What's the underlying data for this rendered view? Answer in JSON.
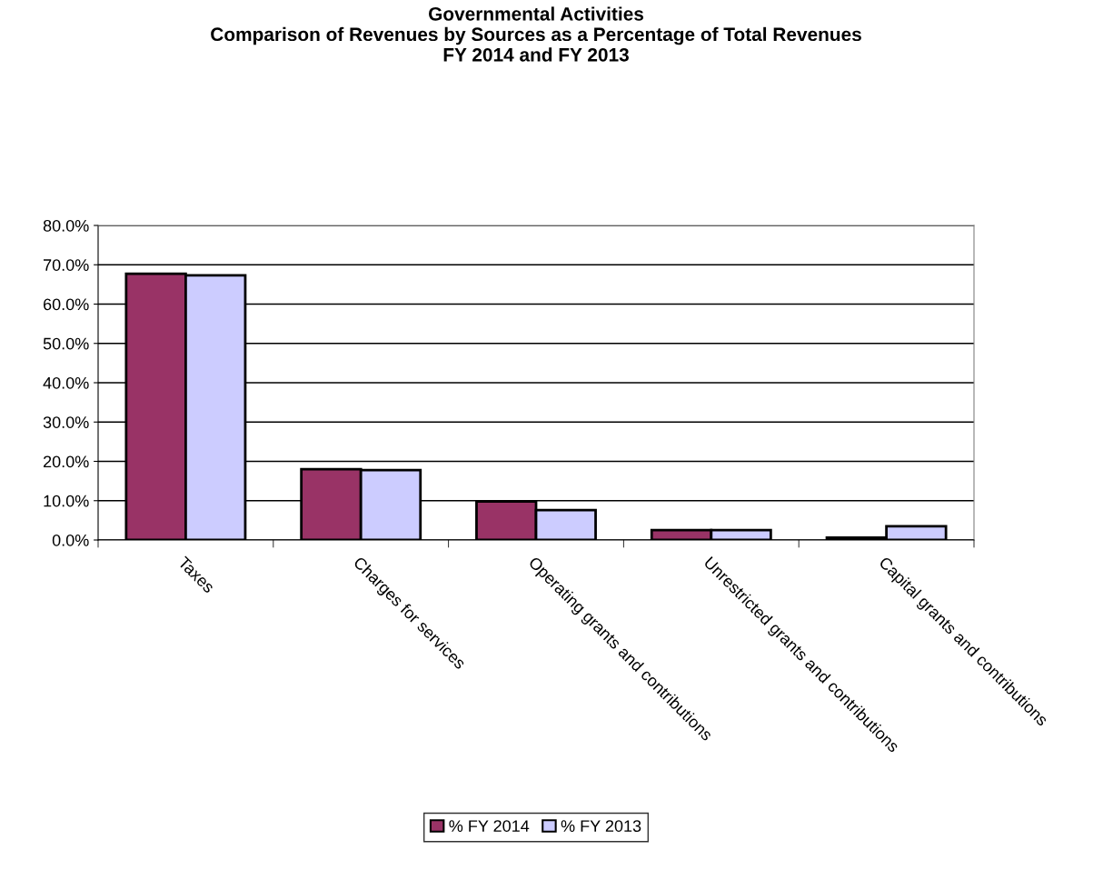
{
  "chart_data": {
    "type": "bar",
    "title": "Governmental Activities\nComparison of Revenues by Sources as a Percentage of Total Revenues\nFY 2014 and FY 2013",
    "categories": [
      "Taxes",
      "Charges for services",
      "Operating grants and contributions",
      "Unrestricted grants and contributions",
      "Capital grants and contributions"
    ],
    "series": [
      {
        "name": "% FY 2014",
        "color": "#993366",
        "values": [
          67.7,
          18.0,
          9.8,
          2.5,
          0.6
        ]
      },
      {
        "name": "% FY 2013",
        "color": "#ccccff",
        "values": [
          67.3,
          17.8,
          7.6,
          2.5,
          3.5
        ]
      }
    ],
    "ylim": [
      0,
      80
    ],
    "yticks": [
      {
        "value": 0,
        "label": "0.0%"
      },
      {
        "value": 10,
        "label": "10.0%"
      },
      {
        "value": 20,
        "label": "20.0%"
      },
      {
        "value": 30,
        "label": "30.0%"
      },
      {
        "value": 40,
        "label": "40.0%"
      },
      {
        "value": 50,
        "label": "50.0%"
      },
      {
        "value": 60,
        "label": "60.0%"
      },
      {
        "value": 70,
        "label": "70.0%"
      },
      {
        "value": 80,
        "label": "80.0%"
      }
    ],
    "grid": "y",
    "legend": "bottom"
  }
}
